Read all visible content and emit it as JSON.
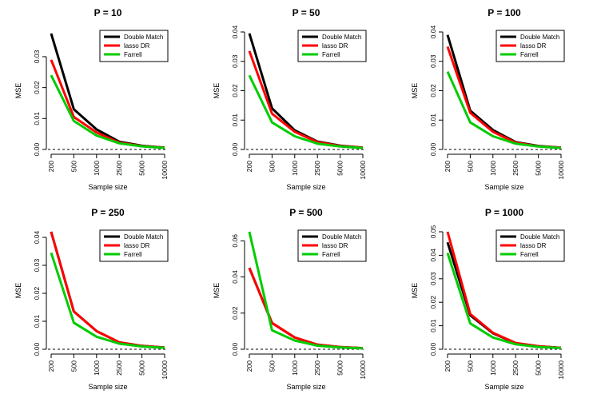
{
  "chart_data": [
    {
      "type": "line",
      "title": "P = 10",
      "xlabel": "Sample size",
      "ylabel": "MSE",
      "categories": [
        "200",
        "500",
        "1000",
        "2500",
        "5000",
        "10000"
      ],
      "ylim": [
        0,
        0.038
      ],
      "yticks": [
        "0.00",
        "0.01",
        "0.02",
        "0.03"
      ],
      "yticks_values": [
        0,
        0.01,
        0.02,
        0.03
      ],
      "reference_line": 0,
      "legend_position": "top-right",
      "series": [
        {
          "name": "Double Match",
          "color": "#000000",
          "values": [
            0.0375,
            0.013,
            0.0065,
            0.0025,
            0.0012,
            0.0006
          ]
        },
        {
          "name": "lasso DR",
          "color": "#ff0000",
          "values": [
            0.029,
            0.0105,
            0.0055,
            0.0022,
            0.0011,
            0.0006
          ]
        },
        {
          "name": "Farrell",
          "color": "#00cc00",
          "values": [
            0.024,
            0.0092,
            0.0045,
            0.002,
            0.001,
            0.0005
          ]
        }
      ]
    },
    {
      "type": "line",
      "title": "P = 50",
      "xlabel": "Sample size",
      "ylabel": "MSE",
      "categories": [
        "200",
        "500",
        "1000",
        "2500",
        "5000",
        "10000"
      ],
      "ylim": [
        0,
        0.04
      ],
      "yticks": [
        "0.00",
        "0.01",
        "0.02",
        "0.03",
        "0.04"
      ],
      "yticks_values": [
        0,
        0.01,
        0.02,
        0.03,
        0.04
      ],
      "reference_line": 0,
      "legend_position": "top-right",
      "series": [
        {
          "name": "Double Match",
          "color": "#000000",
          "values": [
            0.0395,
            0.014,
            0.0065,
            0.0027,
            0.0013,
            0.0006
          ]
        },
        {
          "name": "lasso DR",
          "color": "#ff0000",
          "values": [
            0.0335,
            0.0122,
            0.006,
            0.0025,
            0.0012,
            0.0006
          ]
        },
        {
          "name": "Farrell",
          "color": "#00cc00",
          "values": [
            0.0252,
            0.0092,
            0.0045,
            0.002,
            0.001,
            0.0005
          ]
        }
      ]
    },
    {
      "type": "line",
      "title": "P = 100",
      "xlabel": "Sample size",
      "ylabel": "MSE",
      "categories": [
        "200",
        "500",
        "1000",
        "2500",
        "5000",
        "10000"
      ],
      "ylim": [
        0,
        0.04
      ],
      "yticks": [
        "0.00",
        "0.01",
        "0.02",
        "0.03",
        "0.04"
      ],
      "yticks_values": [
        0,
        0.01,
        0.02,
        0.03,
        0.04
      ],
      "reference_line": 0,
      "legend_position": "top-right",
      "series": [
        {
          "name": "Double Match",
          "color": "#000000",
          "values": [
            0.039,
            0.0132,
            0.0066,
            0.0025,
            0.0012,
            0.0006
          ]
        },
        {
          "name": "lasso DR",
          "color": "#ff0000",
          "values": [
            0.035,
            0.0125,
            0.006,
            0.0023,
            0.0011,
            0.0006
          ]
        },
        {
          "name": "Farrell",
          "color": "#00cc00",
          "values": [
            0.0265,
            0.0092,
            0.0045,
            0.002,
            0.001,
            0.0005
          ]
        }
      ]
    },
    {
      "type": "line",
      "title": "P = 250",
      "xlabel": "Sample size",
      "ylabel": "MSE",
      "categories": [
        "200",
        "500",
        "1000",
        "2500",
        "5000",
        "10000"
      ],
      "ylim": [
        0,
        0.042
      ],
      "yticks": [
        "0.00",
        "0.01",
        "0.02",
        "0.03",
        "0.04"
      ],
      "yticks_values": [
        0,
        0.01,
        0.02,
        0.03,
        0.04
      ],
      "reference_line": 0,
      "legend_position": "top-right",
      "series": [
        {
          "name": "Double Match",
          "color": "#000000",
          "values": [
            0.042,
            0.0135,
            0.0065,
            0.0025,
            0.0012,
            0.0006
          ]
        },
        {
          "name": "lasso DR",
          "color": "#ff0000",
          "values": [
            0.042,
            0.0135,
            0.0065,
            0.0025,
            0.0012,
            0.0006
          ]
        },
        {
          "name": "Farrell",
          "color": "#00cc00",
          "values": [
            0.0345,
            0.0095,
            0.0045,
            0.002,
            0.001,
            0.0005
          ]
        }
      ]
    },
    {
      "type": "line",
      "title": "P = 500",
      "xlabel": "Sample size",
      "ylabel": "MSE",
      "categories": [
        "200",
        "500",
        "1000",
        "2500",
        "5000",
        "10000"
      ],
      "ylim": [
        0,
        0.065
      ],
      "yticks": [
        "0.00",
        "0.02",
        "0.04",
        "0.06"
      ],
      "yticks_values": [
        0,
        0.02,
        0.04,
        0.06
      ],
      "reference_line": 0,
      "legend_position": "top-right",
      "series": [
        {
          "name": "Double Match",
          "color": "#000000",
          "values": [
            0.045,
            0.0145,
            0.0065,
            0.0025,
            0.0012,
            0.0006
          ]
        },
        {
          "name": "lasso DR",
          "color": "#ff0000",
          "values": [
            0.045,
            0.0145,
            0.0065,
            0.0025,
            0.0012,
            0.0006
          ]
        },
        {
          "name": "Farrell",
          "color": "#00cc00",
          "values": [
            0.065,
            0.0105,
            0.0048,
            0.002,
            0.001,
            0.0005
          ]
        }
      ]
    },
    {
      "type": "line",
      "title": "P = 1000",
      "xlabel": "Sample size",
      "ylabel": "MSE",
      "categories": [
        "200",
        "500",
        "1000",
        "2500",
        "5000",
        "10000"
      ],
      "ylim": [
        0,
        0.05
      ],
      "yticks": [
        "0.00",
        "0.01",
        "0.02",
        "0.03",
        "0.04",
        "0.05"
      ],
      "yticks_values": [
        0,
        0.01,
        0.02,
        0.03,
        0.04,
        0.05
      ],
      "reference_line": 0,
      "legend_position": "top-right",
      "series": [
        {
          "name": "Double Match",
          "color": "#000000",
          "values": [
            0.0455,
            0.0145,
            0.0068,
            0.0026,
            0.0013,
            0.0006
          ]
        },
        {
          "name": "lasso DR",
          "color": "#ff0000",
          "values": [
            0.05,
            0.015,
            0.007,
            0.0027,
            0.0013,
            0.0006
          ]
        },
        {
          "name": "Farrell",
          "color": "#00cc00",
          "values": [
            0.041,
            0.011,
            0.005,
            0.0021,
            0.001,
            0.0005
          ]
        }
      ]
    }
  ]
}
